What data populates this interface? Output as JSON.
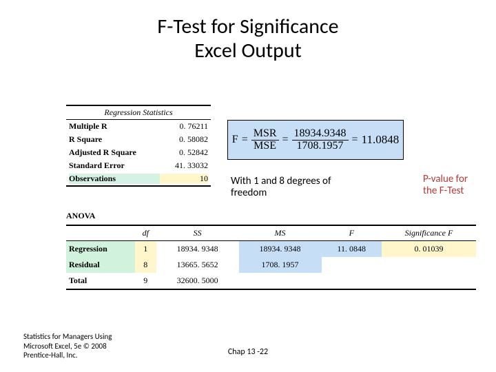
{
  "title_line1": "F-Test for Significance",
  "title_line2": "Excel Output",
  "regstats": {
    "heading": "Regression Statistics",
    "rows": [
      {
        "label": "Multiple R",
        "value": "0. 76211"
      },
      {
        "label": "R Square",
        "value": "0. 58082"
      },
      {
        "label": "Adjusted R Square",
        "value": "0. 52842"
      },
      {
        "label": "Standard Error",
        "value": "41. 33032"
      },
      {
        "label": "Observations",
        "value": "10"
      }
    ]
  },
  "formula": {
    "lhs": "F",
    "frac1_num": "MSR",
    "frac1_den": "MSE",
    "frac2_num": "18934.9348",
    "frac2_den": "1708.1957",
    "result": "11.0848"
  },
  "dof_note_line1": "With 1 and 8 degrees of",
  "dof_note_line2": "freedom",
  "pval_note_line1": "P-value for",
  "pval_note_line2": "the F-Test",
  "anova": {
    "title": "ANOVA",
    "headers": [
      "",
      "df",
      "SS",
      "MS",
      "F",
      "Significance F"
    ],
    "rows": [
      {
        "label": "Regression",
        "df": "1",
        "ss": "18934. 9348",
        "ms": "18934. 9348",
        "f": "11. 0848",
        "sigf": "0. 01039"
      },
      {
        "label": "Residual",
        "df": "8",
        "ss": "13665. 5652",
        "ms": "1708. 1957",
        "f": "",
        "sigf": ""
      },
      {
        "label": "Total",
        "df": "9",
        "ss": "32600. 5000",
        "ms": "",
        "f": "",
        "sigf": ""
      }
    ]
  },
  "footer_left_l1": "Statistics for Managers Using",
  "footer_left_l2": "Microsoft Excel, 5e © 2008",
  "footer_left_l3": "Prentice-Hall, Inc.",
  "footer_center": "Chap 13 -22",
  "colors": {
    "formula_bg": "#c7dff6",
    "hl_green": "#d6f2e5",
    "hl_yellow": "#fff6cc",
    "pval_text": "#b53a3a"
  }
}
